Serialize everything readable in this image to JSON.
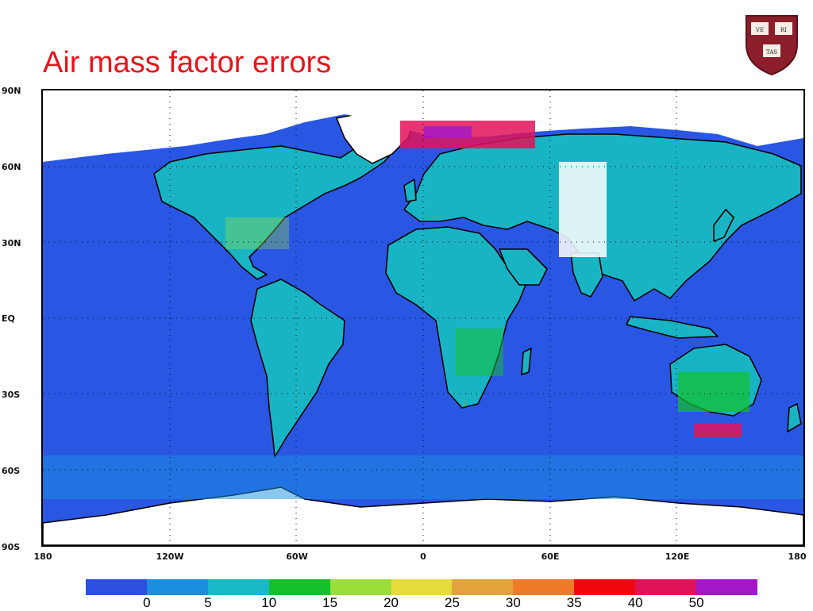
{
  "title": "Air mass factor errors",
  "colors": {
    "title": "#e8141b",
    "ocean_base": "#2a56e4",
    "land_base": "#19b4c4",
    "missing": "#ffffff",
    "coastline": "#000000",
    "shield_red": "#8c1d2a"
  },
  "map": {
    "projection": "equirectangular",
    "lat_range": [
      -90,
      90
    ],
    "lon_range": [
      -180,
      180
    ],
    "lat_ticks": [
      "90N",
      "60N",
      "30N",
      "EQ",
      "30S",
      "60S",
      "90S"
    ],
    "lon_ticks": [
      "180",
      "120W",
      "60W",
      "0",
      "60E",
      "120E",
      "180"
    ],
    "grid": "dotted"
  },
  "colorbar": {
    "colors": [
      "#2b4fe0",
      "#1a8fe0",
      "#17b9c6",
      "#13c22a",
      "#9bde3a",
      "#e5dc3a",
      "#e3a33c",
      "#f07a2a",
      "#f0070f",
      "#e0135a",
      "#a317c8"
    ],
    "labels": [
      "0",
      "5",
      "10",
      "15",
      "20",
      "25",
      "30",
      "35",
      "40",
      "50"
    ]
  },
  "shield": {
    "books": [
      "VE",
      "RI",
      "TAS"
    ]
  }
}
